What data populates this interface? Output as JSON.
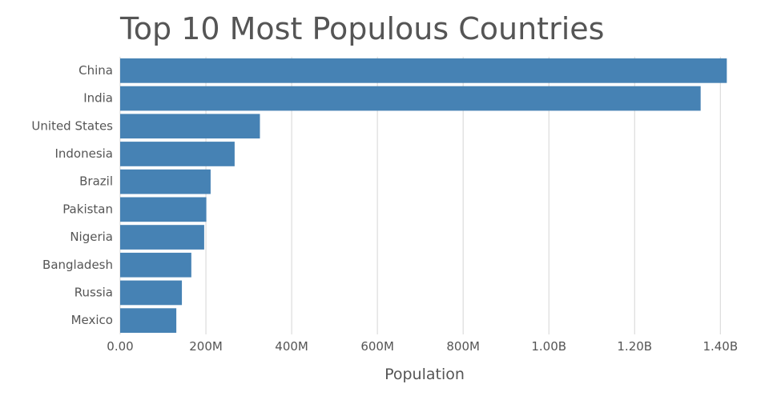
{
  "chart_data": {
    "type": "bar",
    "orientation": "horizontal",
    "title": "Top 10 Most Populous Countries",
    "xlabel": "Population",
    "ylabel": "",
    "categories": [
      "China",
      "India",
      "United States",
      "Indonesia",
      "Brazil",
      "Pakistan",
      "Nigeria",
      "Bangladesh",
      "Russia",
      "Mexico"
    ],
    "values": [
      1415000000,
      1354000000,
      326000000,
      267000000,
      211000000,
      201000000,
      196000000,
      166000000,
      144000000,
      131000000
    ],
    "xlim": [
      0,
      1420000000
    ],
    "x_ticks": [
      0,
      200000000,
      400000000,
      600000000,
      800000000,
      1000000000,
      1200000000,
      1400000000
    ],
    "x_tick_labels": [
      "0.00",
      "200M",
      "400M",
      "600M",
      "800M",
      "1.00B",
      "1.20B",
      "1.40B"
    ],
    "grid": "vertical",
    "bar_color": "#4682b4"
  }
}
